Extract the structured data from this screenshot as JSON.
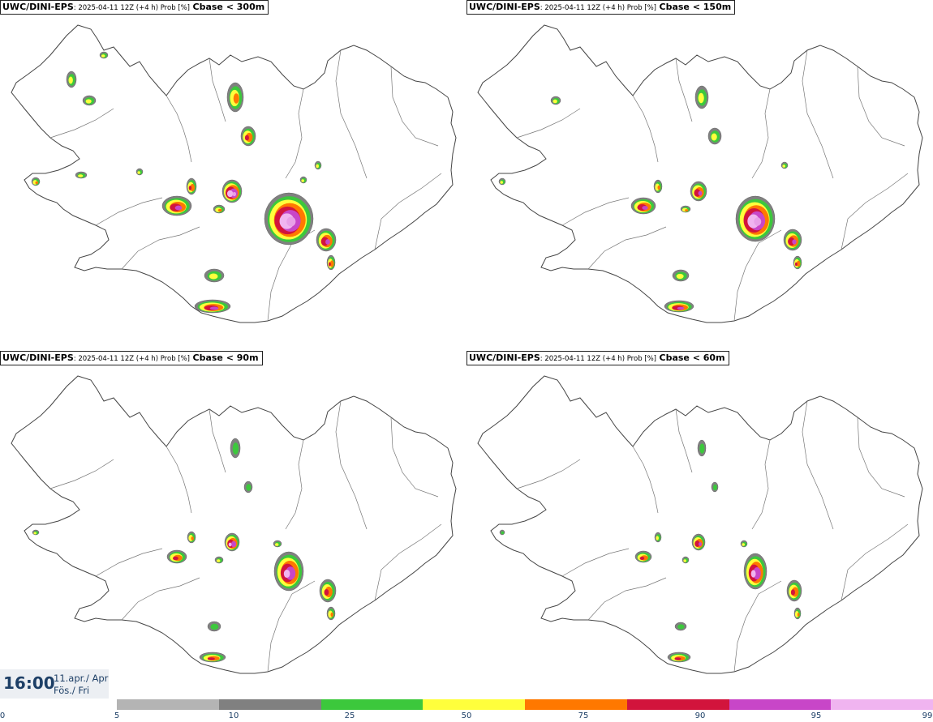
{
  "panels": [
    {
      "model": "UWC/DINI-EPS",
      "meta": ": 2025-04-11 12Z (+4 h) Prob [%]",
      "threshold": "Cbase < 300m"
    },
    {
      "model": "UWC/DINI-EPS",
      "meta": ": 2025-04-11 12Z (+4 h) Prob [%]",
      "threshold": "Cbase < 150m"
    },
    {
      "model": "UWC/DINI-EPS",
      "meta": ": 2025-04-11 12Z (+4 h) Prob [%]",
      "threshold": "Cbase < 90m"
    },
    {
      "model": "UWC/DINI-EPS",
      "meta": ": 2025-04-11 12Z (+4 h) Prob [%]",
      "threshold": "Cbase < 60m"
    }
  ],
  "valid_time": {
    "time": "16:00",
    "date": "11.apr./ Apr",
    "day": "Fös./ Fri"
  },
  "colorbar": {
    "labels": [
      "0",
      "5",
      "10",
      "25",
      "50",
      "75",
      "90",
      "95",
      "99"
    ],
    "colors": [
      "#b4b4b4",
      "#808080",
      "#3cc83c",
      "#ffff3c",
      "#ff7800",
      "#d2143c",
      "#c846c8",
      "#f0b4f0"
    ]
  }
}
